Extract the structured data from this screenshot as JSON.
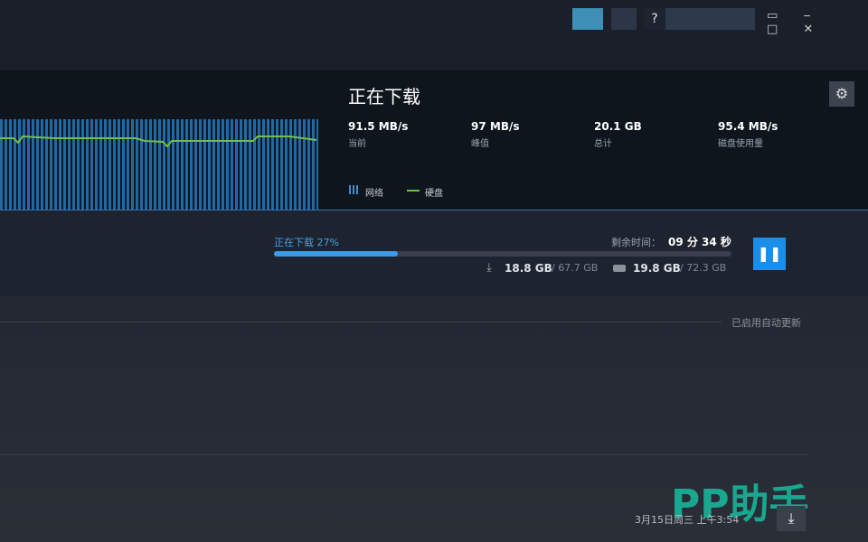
{
  "top_bar": {
    "help": "?"
  },
  "graph_panel": {
    "title": "正在下载",
    "stats": [
      {
        "value": "91.5 MB/s",
        "label": "当前"
      },
      {
        "value": "97 MB/s",
        "label": "峰值"
      },
      {
        "value": "20.1 GB",
        "label": "总计"
      },
      {
        "value": "95.4 MB/s",
        "label": "磁盘使用量"
      }
    ],
    "legend": [
      "网络",
      "硬盘"
    ]
  },
  "download": {
    "progress": {
      "value": 27,
      "label": "正在下载 27%"
    },
    "remaining_label": "剩余时间：",
    "remaining_time": "09 分 34 秒",
    "downloaded": "18.8 GB",
    "download_total": "/ 67.7 GB",
    "disk_written": "19.8 GB",
    "disk_total": "/ 72.3 GB"
  },
  "auto_update": "已启用自动更新",
  "footer": {
    "datetime": "3月15日周三 上午3:54"
  },
  "watermark": "PP助手"
}
